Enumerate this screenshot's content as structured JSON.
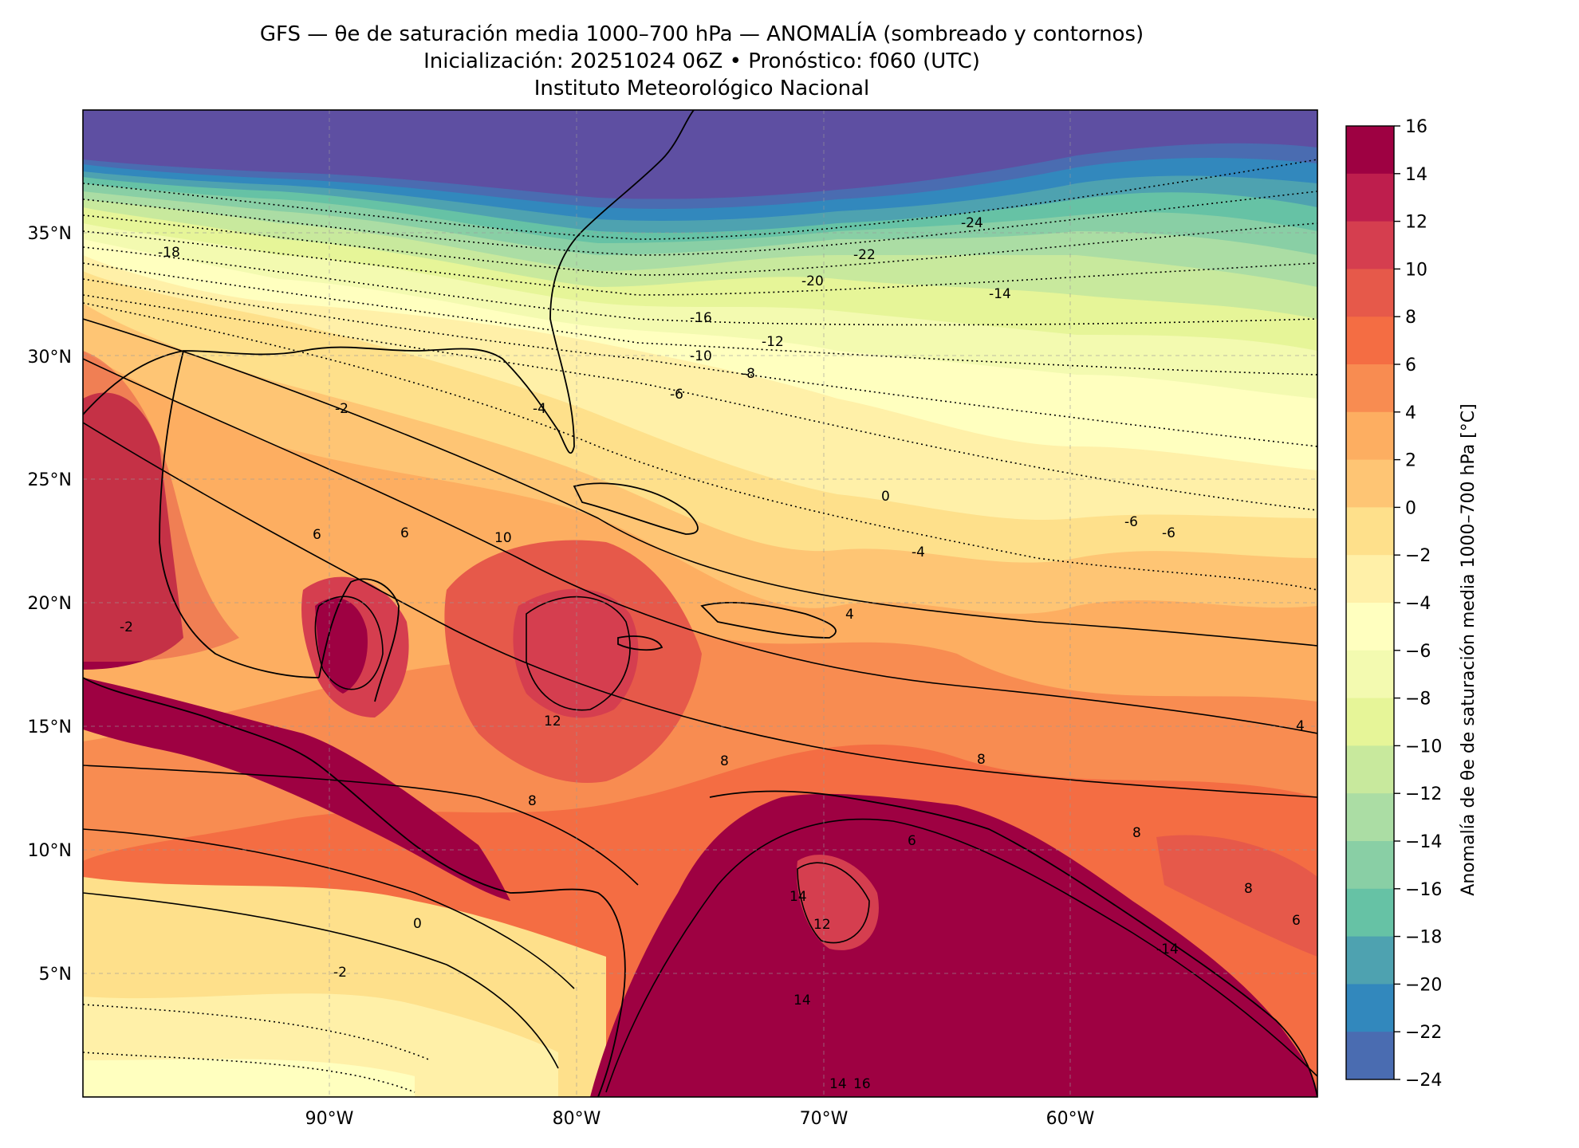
{
  "header": {
    "title_line1": "GFS — θe de saturación media 1000–700 hPa — ANOMALÍA (sombreado y contornos)",
    "title_line2": "Inicialización: 20251024 06Z   •   Pronóstico: f060 (UTC)",
    "title_line3": "Instituto Meteorológico Nacional"
  },
  "map": {
    "lat_labels": [
      "35°N",
      "30°N",
      "25°N",
      "20°N",
      "15°N",
      "10°N",
      "5°N"
    ],
    "lon_labels": [
      "90°W",
      "80°W",
      "70°W",
      "60°W"
    ],
    "contour_labels": [
      "-24",
      "-22",
      "-20",
      "-18",
      "-16",
      "-14",
      "-12",
      "-10",
      "-8",
      "-6",
      "-4",
      "-2",
      "0",
      "4",
      "6",
      "8",
      "10",
      "12",
      "14",
      "16",
      "-2",
      "0",
      "-6",
      "-6",
      "6",
      "8",
      "8",
      "6",
      "-4",
      "-2",
      "8",
      "8",
      "12",
      "14",
      "14",
      "6",
      "4",
      "-14"
    ],
    "extent": {
      "lon_min": -100,
      "lon_max": -50,
      "lat_min": 0,
      "lat_max": 40
    },
    "gridlines": true
  },
  "colorbar": {
    "label": "Anomalía de θe de saturación media 1000–700 hPa [°C]",
    "tick_labels": [
      "16",
      "14",
      "12",
      "10",
      "8",
      "6",
      "4",
      "2",
      "0",
      "−2",
      "−4",
      "−6",
      "−8",
      "−10",
      "−12",
      "−14",
      "−16",
      "−18",
      "−20",
      "−22",
      "−24"
    ],
    "levels": [
      16,
      14,
      12,
      10,
      8,
      6,
      4,
      2,
      0,
      -2,
      -4,
      -6,
      -8,
      -10,
      -12,
      -14,
      -16,
      -18,
      -20,
      -22,
      -24
    ],
    "colors": [
      "#9e0142",
      "#be1e4d",
      "#d53e4f",
      "#e6594a",
      "#f46d43",
      "#f88c51",
      "#fdae61",
      "#fec574",
      "#fee08b",
      "#fff0a8",
      "#ffffbf",
      "#f3fab0",
      "#e6f598",
      "#c8e99d",
      "#abdda4",
      "#89cfa5",
      "#66c2a5",
      "#4ea2b0",
      "#3288bd",
      "#4a6cb1",
      "#5e4fa2"
    ]
  }
}
